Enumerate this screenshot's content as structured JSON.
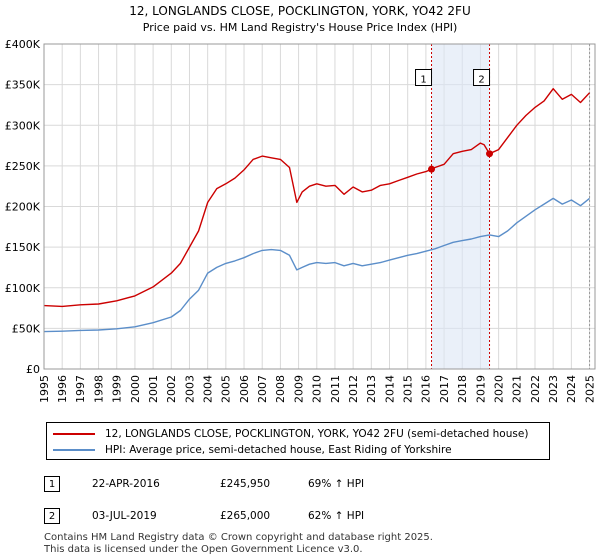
{
  "chart_data": {
    "type": "line",
    "title": "12, LONGLANDS CLOSE, POCKLINGTON, YORK, YO42 2FU",
    "subtitle": "Price paid vs. HM Land Registry's House Price Index (HPI)",
    "xlabel": "",
    "ylabel": "",
    "xlim": [
      1995,
      2025.3
    ],
    "ylim": [
      0,
      400000
    ],
    "y_ticks": [
      {
        "value": 0,
        "label": "£0"
      },
      {
        "value": 50000,
        "label": "£50K"
      },
      {
        "value": 100000,
        "label": "£100K"
      },
      {
        "value": 150000,
        "label": "£150K"
      },
      {
        "value": 200000,
        "label": "£200K"
      },
      {
        "value": 250000,
        "label": "£250K"
      },
      {
        "value": 300000,
        "label": "£300K"
      },
      {
        "value": 350000,
        "label": "£350K"
      },
      {
        "value": 400000,
        "label": "£400K"
      }
    ],
    "x_ticks": [
      "1995",
      "1996",
      "1997",
      "1998",
      "1999",
      "2000",
      "2001",
      "2002",
      "2003",
      "2004",
      "2005",
      "2006",
      "2007",
      "2008",
      "2009",
      "2010",
      "2011",
      "2012",
      "2013",
      "2014",
      "2015",
      "2016",
      "2017",
      "2018",
      "2019",
      "2020",
      "2021",
      "2022",
      "2023",
      "2024",
      "2025"
    ],
    "grid": true,
    "series": [
      {
        "name": "12, LONGLANDS CLOSE, POCKLINGTON, YORK, YO42 2FU (semi-detached house)",
        "color": "#cc0000",
        "x": [
          1995,
          1996,
          1997,
          1998,
          1999,
          2000,
          2001,
          2002,
          2002.5,
          2003,
          2003.5,
          2004,
          2004.5,
          2005,
          2005.5,
          2006,
          2006.5,
          2007,
          2007.5,
          2008,
          2008.5,
          2008.9,
          2009.2,
          2009.6,
          2010,
          2010.5,
          2011,
          2011.5,
          2012,
          2012.5,
          2013,
          2013.5,
          2014,
          2014.5,
          2015,
          2015.5,
          2016,
          2016.31,
          2016.5,
          2017,
          2017.5,
          2018,
          2018.5,
          2019,
          2019.2,
          2019.5,
          2020,
          2020.5,
          2021,
          2021.5,
          2022,
          2022.5,
          2023,
          2023.5,
          2024,
          2024.5,
          2025
        ],
        "values": [
          78000,
          77000,
          79000,
          80000,
          84000,
          90000,
          101000,
          118000,
          130000,
          150000,
          170000,
          205000,
          222000,
          228000,
          235000,
          245000,
          258000,
          262000,
          260000,
          258000,
          248000,
          205000,
          218000,
          225000,
          228000,
          225000,
          226000,
          215000,
          224000,
          218000,
          220000,
          226000,
          228000,
          232000,
          236000,
          240000,
          243000,
          245950,
          248000,
          252000,
          265000,
          268000,
          270000,
          278000,
          276000,
          265000,
          270000,
          285000,
          300000,
          312000,
          322000,
          330000,
          345000,
          332000,
          338000,
          328000,
          340000
        ]
      },
      {
        "name": "HPI: Average price, semi-detached house, East Riding of Yorkshire",
        "color": "#5b8ec9",
        "x": [
          1995,
          1996,
          1997,
          1998,
          1999,
          2000,
          2001,
          2002,
          2002.5,
          2003,
          2003.5,
          2004,
          2004.5,
          2005,
          2005.5,
          2006,
          2006.5,
          2007,
          2007.5,
          2008,
          2008.5,
          2008.9,
          2009.2,
          2009.6,
          2010,
          2010.5,
          2011,
          2011.5,
          2012,
          2012.5,
          2013,
          2013.5,
          2014,
          2014.5,
          2015,
          2015.5,
          2016,
          2016.5,
          2017,
          2017.5,
          2018,
          2018.5,
          2019,
          2019.5,
          2020,
          2020.5,
          2021,
          2021.5,
          2022,
          2022.5,
          2023,
          2023.5,
          2024,
          2024.5,
          2025
        ],
        "values": [
          46000,
          46500,
          47500,
          48000,
          49500,
          52000,
          57000,
          64000,
          72000,
          86000,
          97000,
          118000,
          125000,
          130000,
          133000,
          137000,
          142000,
          146000,
          147000,
          146000,
          140000,
          122000,
          125000,
          129000,
          131000,
          130000,
          131000,
          127000,
          130000,
          127000,
          129000,
          131000,
          134000,
          137000,
          140000,
          142000,
          145000,
          148000,
          152000,
          156000,
          158000,
          160000,
          163000,
          165000,
          163000,
          170000,
          180000,
          188000,
          196000,
          203000,
          210000,
          203000,
          208000,
          201000,
          210000
        ]
      }
    ],
    "sales": [
      {
        "label": "1",
        "x": 2016.31,
        "value": 245950
      },
      {
        "label": "2",
        "x": 2019.5,
        "value": 265000
      }
    ]
  },
  "legend": {
    "property": "12, LONGLANDS CLOSE, POCKLINGTON, YORK, YO42 2FU (semi-detached house)",
    "hpi": "HPI: Average price, semi-detached house, East Riding of Yorkshire"
  },
  "sales_table": [
    {
      "marker": "1",
      "date": "22-APR-2016",
      "price": "£245,950",
      "hpi": "69% ↑ HPI"
    },
    {
      "marker": "2",
      "date": "03-JUL-2019",
      "price": "£265,000",
      "hpi": "62% ↑ HPI"
    }
  ],
  "footer": {
    "line1": "Contains HM Land Registry data © Crown copyright and database right 2025.",
    "line2": "This data is licensed under the Open Government Licence v3.0."
  }
}
